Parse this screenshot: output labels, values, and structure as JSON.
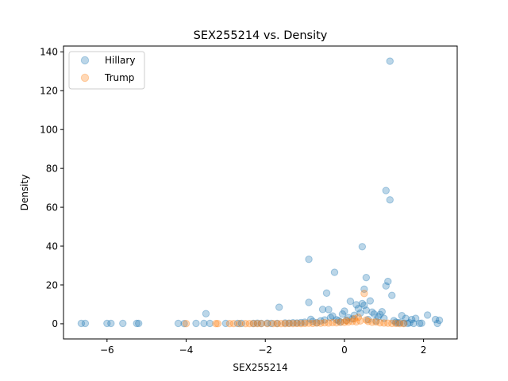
{
  "chart_data": {
    "type": "scatter",
    "title": "SEX255214 vs. Density",
    "xlabel": "SEX255214",
    "ylabel": "Density",
    "xlim": [
      -7.1,
      2.85
    ],
    "ylim": [
      -7.8,
      143
    ],
    "xticks": [
      -6,
      -4,
      -2,
      0,
      2
    ],
    "xtick_labels": [
      "−6",
      "−4",
      "−2",
      "0",
      "2"
    ],
    "yticks": [
      0,
      20,
      40,
      60,
      80,
      100,
      120,
      140
    ],
    "ytick_labels": [
      "0",
      "20",
      "40",
      "60",
      "80",
      "100",
      "120",
      "140"
    ],
    "grid": false,
    "legend_position": "top-left",
    "series": [
      {
        "name": "Hillary",
        "color": "#1f77b4",
        "points": [
          [
            -6.65,
            0.2
          ],
          [
            -6.55,
            0.2
          ],
          [
            -6.0,
            0.2
          ],
          [
            -5.9,
            0.2
          ],
          [
            -5.6,
            0.2
          ],
          [
            -5.25,
            0.2
          ],
          [
            -5.2,
            0.2
          ],
          [
            -4.2,
            0.2
          ],
          [
            -4.05,
            0.1
          ],
          [
            -3.75,
            0.2
          ],
          [
            -3.55,
            0.2
          ],
          [
            -3.5,
            5.2
          ],
          [
            -3.4,
            0.2
          ],
          [
            -3.0,
            0.2
          ],
          [
            -2.7,
            0.2
          ],
          [
            -2.6,
            0.2
          ],
          [
            -2.3,
            0.2
          ],
          [
            -2.2,
            0.3
          ],
          [
            -2.1,
            0.2
          ],
          [
            -1.95,
            0.3
          ],
          [
            -1.85,
            0.2
          ],
          [
            -1.7,
            0.2
          ],
          [
            -1.65,
            8.5
          ],
          [
            -1.5,
            0.4
          ],
          [
            -1.4,
            0.3
          ],
          [
            -1.3,
            0.5
          ],
          [
            -1.2,
            0.4
          ],
          [
            -1.1,
            0.6
          ],
          [
            -1.0,
            0.8
          ],
          [
            -0.9,
            33.2
          ],
          [
            -0.9,
            11.0
          ],
          [
            -0.85,
            2.3
          ],
          [
            -0.8,
            1.2
          ],
          [
            -0.7,
            0.5
          ],
          [
            -0.6,
            1.5
          ],
          [
            -0.55,
            7.4
          ],
          [
            -0.5,
            2.0
          ],
          [
            -0.45,
            15.8
          ],
          [
            -0.4,
            7.3
          ],
          [
            -0.35,
            3.2
          ],
          [
            -0.3,
            4.0
          ],
          [
            -0.25,
            26.5
          ],
          [
            -0.2,
            2.1
          ],
          [
            -0.15,
            1.6
          ],
          [
            -0.1,
            0.9
          ],
          [
            -0.05,
            5.0
          ],
          [
            0.0,
            6.5
          ],
          [
            0.05,
            1.8
          ],
          [
            0.1,
            3.2
          ],
          [
            0.15,
            11.6
          ],
          [
            0.2,
            2.5
          ],
          [
            0.25,
            4.4
          ],
          [
            0.3,
            9.8
          ],
          [
            0.35,
            7.8
          ],
          [
            0.4,
            5.5
          ],
          [
            0.45,
            39.7
          ],
          [
            0.45,
            10.4
          ],
          [
            0.5,
            17.8
          ],
          [
            0.5,
            9.5
          ],
          [
            0.55,
            23.8
          ],
          [
            0.55,
            7.0
          ],
          [
            0.6,
            2.2
          ],
          [
            0.65,
            11.8
          ],
          [
            0.7,
            6.0
          ],
          [
            0.75,
            5.0
          ],
          [
            0.8,
            1.5
          ],
          [
            0.85,
            3.6
          ],
          [
            0.9,
            4.8
          ],
          [
            0.95,
            6.2
          ],
          [
            1.0,
            2.8
          ],
          [
            1.05,
            68.6
          ],
          [
            1.05,
            19.5
          ],
          [
            1.1,
            21.8
          ],
          [
            1.15,
            63.8
          ],
          [
            1.15,
            135.2
          ],
          [
            1.2,
            14.6
          ],
          [
            1.25,
            1.6
          ],
          [
            1.3,
            0.8
          ],
          [
            1.35,
            0.4
          ],
          [
            1.4,
            0.6
          ],
          [
            1.45,
            4.2
          ],
          [
            1.5,
            0.3
          ],
          [
            1.55,
            2.8
          ],
          [
            1.6,
            0.2
          ],
          [
            1.65,
            0.5
          ],
          [
            1.7,
            2.2
          ],
          [
            1.75,
            0.2
          ],
          [
            1.8,
            2.8
          ],
          [
            1.9,
            0.2
          ],
          [
            1.95,
            0.3
          ],
          [
            2.1,
            4.5
          ],
          [
            2.3,
            2.2
          ],
          [
            2.35,
            0.2
          ],
          [
            2.4,
            1.8
          ]
        ]
      },
      {
        "name": "Trump",
        "color": "#ff7f0e",
        "points": [
          [
            -4.0,
            0.1
          ],
          [
            -3.25,
            0.1
          ],
          [
            -3.2,
            0.1
          ],
          [
            -2.9,
            0.1
          ],
          [
            -2.8,
            0.1
          ],
          [
            -2.65,
            0.1
          ],
          [
            -2.5,
            0.1
          ],
          [
            -2.4,
            0.1
          ],
          [
            -2.3,
            0.1
          ],
          [
            -2.2,
            0.1
          ],
          [
            -2.1,
            0.1
          ],
          [
            -1.95,
            0.1
          ],
          [
            -1.8,
            0.1
          ],
          [
            -1.7,
            0.1
          ],
          [
            -1.6,
            0.1
          ],
          [
            -1.5,
            0.1
          ],
          [
            -1.4,
            0.2
          ],
          [
            -1.3,
            0.1
          ],
          [
            -1.2,
            0.2
          ],
          [
            -1.1,
            0.1
          ],
          [
            -1.0,
            0.2
          ],
          [
            -0.9,
            0.3
          ],
          [
            -0.8,
            0.2
          ],
          [
            -0.7,
            0.4
          ],
          [
            -0.6,
            0.3
          ],
          [
            -0.5,
            0.5
          ],
          [
            -0.4,
            0.4
          ],
          [
            -0.3,
            0.6
          ],
          [
            -0.2,
            0.5
          ],
          [
            -0.1,
            0.8
          ],
          [
            0.0,
            0.7
          ],
          [
            0.05,
            1.6
          ],
          [
            0.1,
            0.9
          ],
          [
            0.2,
            1.2
          ],
          [
            0.25,
            2.6
          ],
          [
            0.3,
            1.0
          ],
          [
            0.35,
            3.3
          ],
          [
            0.4,
            1.5
          ],
          [
            0.5,
            15.6
          ],
          [
            0.55,
            2.0
          ],
          [
            0.6,
            1.2
          ],
          [
            0.7,
            0.8
          ],
          [
            0.8,
            0.9
          ],
          [
            0.9,
            0.5
          ],
          [
            1.0,
            0.4
          ],
          [
            1.1,
            0.3
          ],
          [
            1.2,
            0.2
          ],
          [
            1.3,
            0.2
          ],
          [
            1.4,
            0.1
          ],
          [
            1.5,
            0.1
          ]
        ]
      }
    ]
  }
}
